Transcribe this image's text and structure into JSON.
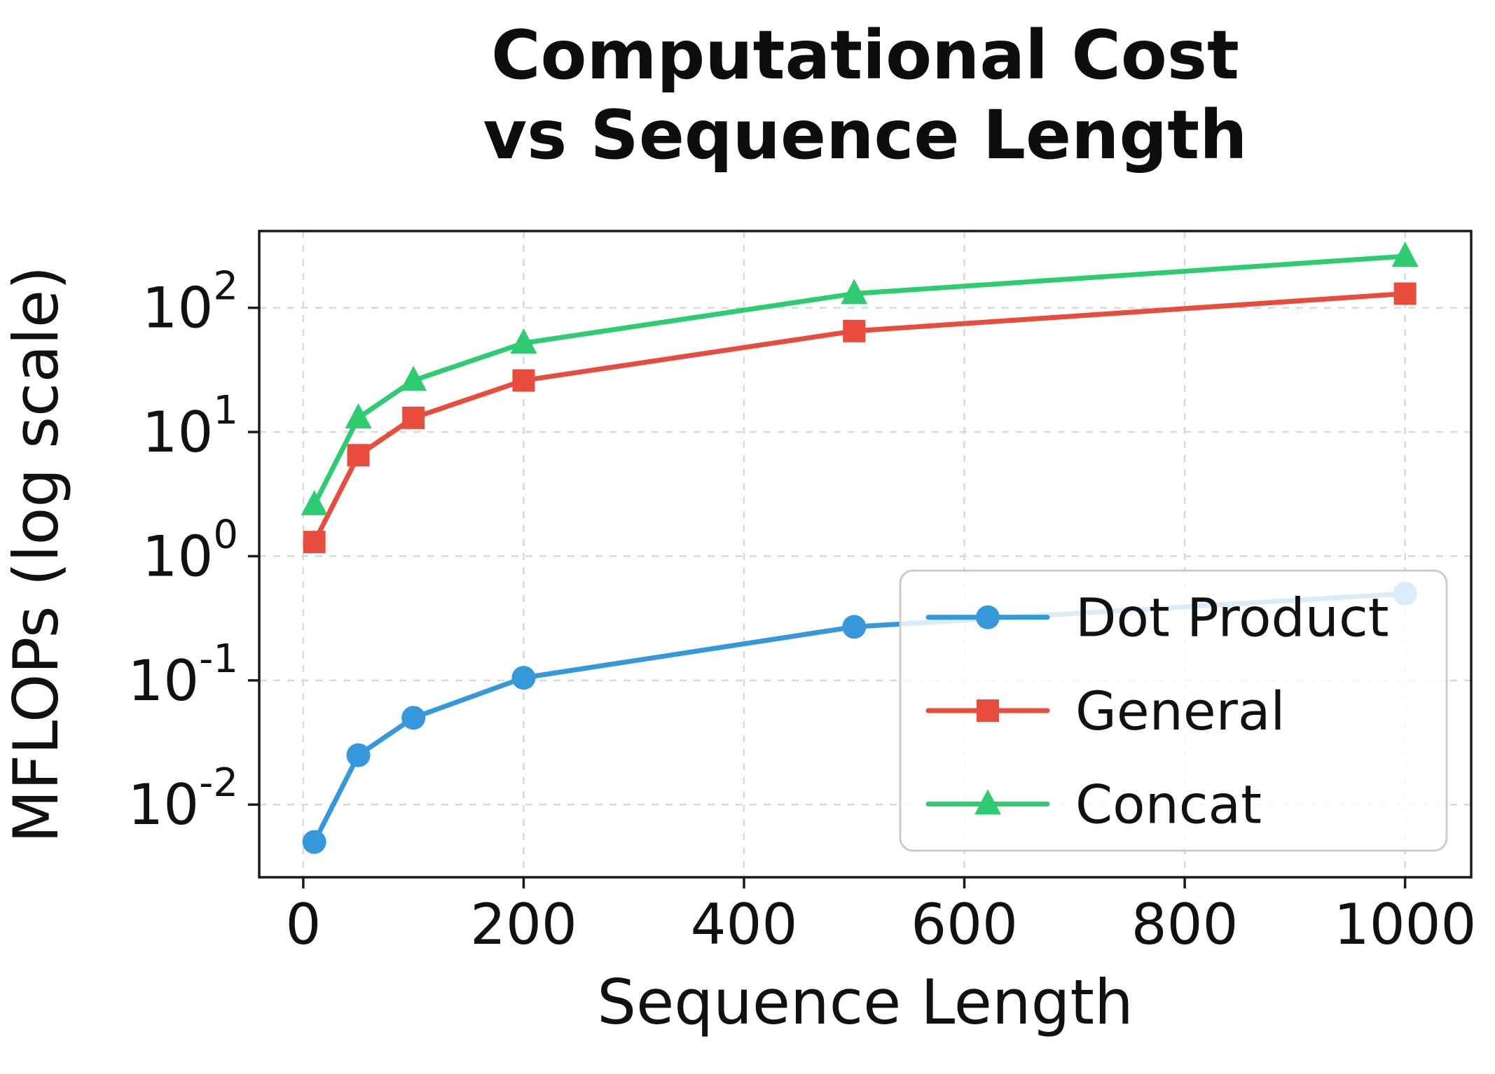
{
  "chart_data": {
    "type": "line",
    "title": "Computational Cost vs Sequence Length",
    "title_line1": "Computational Cost",
    "title_line2": "vs Sequence Length",
    "xlabel": "Sequence Length",
    "ylabel": "MFLOPs (log scale)",
    "y_scale": "log",
    "grid": true,
    "legend_position": "center right",
    "x": [
      10,
      50,
      100,
      200,
      500,
      1000
    ],
    "series": [
      {
        "name": "Dot Product",
        "color": "#3498db",
        "marker": "circle",
        "values": [
          0.005,
          0.025,
          0.05,
          0.105,
          0.27,
          0.5
        ]
      },
      {
        "name": "General",
        "color": "#e74c3c",
        "marker": "square",
        "values": [
          1.3,
          6.5,
          13,
          26,
          65,
          130
        ]
      },
      {
        "name": "Concat",
        "color": "#2ecc71",
        "marker": "triangle",
        "values": [
          2.6,
          13,
          26,
          52,
          130,
          260
        ]
      }
    ],
    "x_ticks": [
      0,
      200,
      400,
      600,
      800,
      1000
    ],
    "y_tick_base": "10",
    "y_tick_exponents": [
      -2,
      -1,
      0,
      1,
      2
    ],
    "xlim": [
      -40,
      1060
    ],
    "ylim": [
      0.0026,
      415
    ],
    "colors": {
      "grid": "#d9d9d9",
      "spine": "#1a1a1a",
      "tick_label": "#1a1a1a",
      "legend_border": "#cccccc",
      "legend_bg": "rgba(255,255,255,0.82)"
    }
  }
}
